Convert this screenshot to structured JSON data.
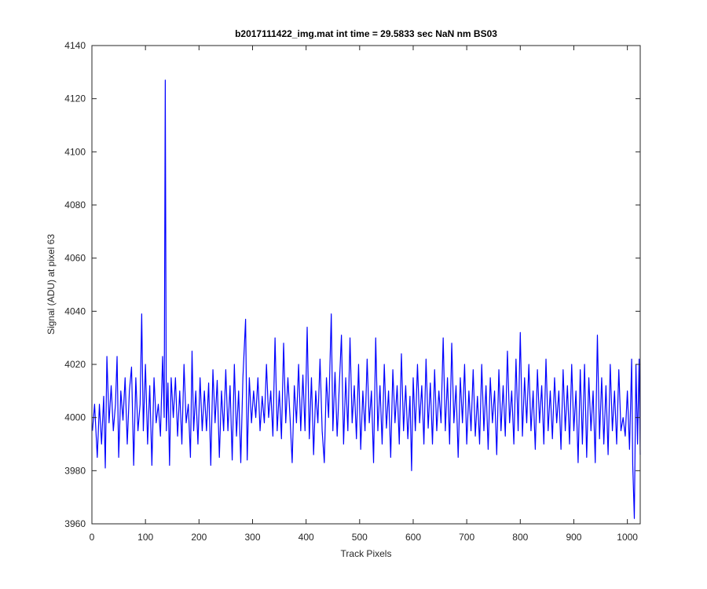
{
  "chart_data": {
    "type": "line",
    "title": "b2017111422_img.mat int time = 29.5833 sec  NaN nm BS03",
    "x_label": "Track Pixels",
    "y_label": "Signal (ADU) at pixel 63",
    "xlim": [
      0,
      1024
    ],
    "ylim": [
      3960,
      4140
    ],
    "xticks": [
      0,
      100,
      200,
      300,
      400,
      500,
      600,
      700,
      800,
      900,
      1000
    ],
    "yticks": [
      3960,
      3980,
      4000,
      4020,
      4040,
      4060,
      4080,
      4100,
      4120,
      4140
    ],
    "grid": false,
    "series": [
      {
        "color": "#0000ff",
        "x": [
          1,
          5,
          10,
          14,
          18,
          22,
          25,
          28,
          32,
          36,
          40,
          44,
          47,
          50,
          54,
          58,
          62,
          66,
          70,
          74,
          78,
          82,
          86,
          90,
          93,
          96,
          100,
          104,
          108,
          112,
          116,
          120,
          124,
          128,
          132,
          135,
          137,
          139,
          142,
          145,
          148,
          152,
          156,
          160,
          164,
          168,
          172,
          176,
          180,
          184,
          187,
          190,
          194,
          198,
          202,
          206,
          210,
          214,
          218,
          222,
          226,
          230,
          234,
          238,
          242,
          246,
          250,
          254,
          258,
          262,
          266,
          270,
          274,
          278,
          282,
          287,
          290,
          294,
          298,
          302,
          306,
          310,
          314,
          318,
          322,
          326,
          330,
          334,
          338,
          342,
          346,
          350,
          354,
          358,
          362,
          366,
          370,
          374,
          378,
          382,
          386,
          390,
          394,
          398,
          402,
          406,
          410,
          414,
          418,
          422,
          426,
          430,
          434,
          438,
          442,
          447,
          450,
          454,
          458,
          462,
          466,
          470,
          474,
          478,
          482,
          486,
          490,
          494,
          498,
          502,
          506,
          510,
          514,
          518,
          522,
          526,
          530,
          534,
          538,
          542,
          546,
          550,
          554,
          558,
          562,
          566,
          570,
          574,
          578,
          582,
          586,
          590,
          594,
          597,
          600,
          604,
          608,
          612,
          616,
          620,
          624,
          628,
          632,
          636,
          640,
          644,
          648,
          652,
          656,
          660,
          664,
          668,
          672,
          676,
          680,
          684,
          688,
          692,
          696,
          700,
          704,
          708,
          712,
          716,
          720,
          724,
          728,
          732,
          736,
          740,
          744,
          748,
          752,
          756,
          760,
          764,
          768,
          772,
          776,
          780,
          784,
          788,
          792,
          796,
          800,
          804,
          808,
          812,
          816,
          820,
          824,
          828,
          832,
          836,
          840,
          844,
          848,
          852,
          856,
          860,
          864,
          868,
          872,
          876,
          880,
          884,
          888,
          892,
          896,
          900,
          904,
          908,
          912,
          916,
          920,
          924,
          928,
          932,
          936,
          940,
          944,
          948,
          952,
          956,
          960,
          964,
          968,
          972,
          976,
          980,
          984,
          988,
          992,
          996,
          1000,
          1004,
          1008,
          1010,
          1013,
          1016,
          1019,
          1022,
          1024
        ],
        "values": [
          3995,
          4005,
          3985,
          4005,
          3990,
          4008,
          3981,
          4023,
          3998,
          4012,
          3995,
          4005,
          4023,
          3985,
          4010,
          3999,
          4015,
          3990,
          4010,
          4019,
          3982,
          4015,
          3995,
          4005,
          4039,
          3995,
          4020,
          3990,
          4012,
          3982,
          4015,
          3998,
          4005,
          3993,
          4023,
          4000,
          4127,
          3995,
          4013,
          3982,
          4015,
          4000,
          4015,
          3993,
          4010,
          3990,
          4020,
          3998,
          4005,
          3985,
          4025,
          3995,
          4010,
          3990,
          4015,
          3995,
          4010,
          3995,
          4013,
          3982,
          4018,
          3998,
          4014,
          3985,
          4010,
          3995,
          4018,
          3995,
          4012,
          3984,
          4020,
          3993,
          4010,
          3983,
          4015,
          4037,
          3984,
          4015,
          3998,
          4010,
          4000,
          4015,
          3995,
          4008,
          3998,
          4020,
          4000,
          4010,
          3993,
          4030,
          3995,
          4010,
          3992,
          4028,
          3998,
          4015,
          4000,
          3983,
          4012,
          3998,
          4020,
          3995,
          4016,
          3995,
          4034,
          3992,
          4015,
          3986,
          4010,
          3998,
          4022,
          3995,
          3983,
          4015,
          4000,
          4039,
          3995,
          4017,
          3993,
          4012,
          4031,
          3990,
          4015,
          3995,
          4030,
          3998,
          4012,
          3992,
          4020,
          3988,
          4010,
          3995,
          4022,
          3998,
          4010,
          3983,
          4030,
          3995,
          4012,
          3990,
          4020,
          3996,
          4010,
          3985,
          4018,
          3998,
          4012,
          3990,
          4024,
          3995,
          4012,
          3992,
          4008,
          3980,
          4015,
          3995,
          4020,
          3998,
          4012,
          3990,
          4022,
          3996,
          4013,
          3990,
          4018,
          3995,
          4010,
          3998,
          4030,
          3995,
          4015,
          3990,
          4028,
          3998,
          4012,
          3985,
          4015,
          3998,
          4020,
          3990,
          4010,
          3995,
          4018,
          3993,
          4008,
          3990,
          4020,
          3995,
          4012,
          3988,
          4015,
          3998,
          4010,
          3986,
          4018,
          3995,
          4012,
          3993,
          4025,
          3998,
          4010,
          3990,
          4022,
          3995,
          4032,
          3993,
          4015,
          3998,
          4020,
          3995,
          4010,
          3988,
          4018,
          3998,
          4012,
          3990,
          4022,
          3995,
          4010,
          3992,
          4015,
          3998,
          4010,
          3988,
          4018,
          3995,
          4012,
          3990,
          4020,
          3995,
          4010,
          3983,
          4018,
          3990,
          4020,
          3985,
          4015,
          3995,
          4010,
          3983,
          4031,
          3992,
          4015,
          3990,
          4012,
          3986,
          4020,
          3995,
          4010,
          3990,
          4018,
          3995,
          4000,
          3993,
          4010,
          3988,
          4022,
          3982,
          3962,
          4020,
          3990,
          4022,
          3986
        ]
      }
    ]
  }
}
